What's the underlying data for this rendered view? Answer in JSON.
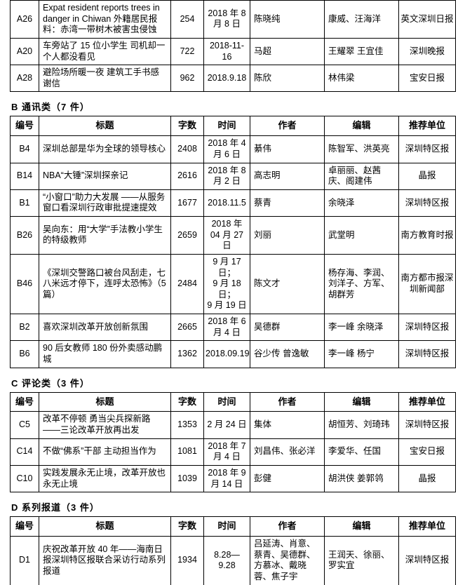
{
  "columns": [
    "编号",
    "标题",
    "字数",
    "时间",
    "作者",
    "编辑",
    "推荐单位"
  ],
  "sections": [
    {
      "id": "A",
      "title": "",
      "show_header": false,
      "rows": [
        {
          "id": "A26",
          "title": "Expat resident reports trees in danger in Chiwan 外籍居民报料：赤湾一带树木被害虫侵蚀",
          "words": "254",
          "date": "2018 年 8 月 8 日",
          "author": "陈晓纯",
          "editor": "康威、汪海洋",
          "unit": "英文深圳日报"
        },
        {
          "id": "A20",
          "title": "车旁站了 15 位小学生 司机却一个人都没看见",
          "words": "722",
          "date": "2018-11-16",
          "author": "马超",
          "editor": "王耀翠 王宜佳",
          "unit": "深圳晚报"
        },
        {
          "id": "A28",
          "title": "避险场所暖一夜 建筑工手书感谢信",
          "words": "962",
          "date": "2018.9.18",
          "author": "陈欣",
          "editor": "林伟梁",
          "unit": "宝安日报"
        }
      ]
    },
    {
      "id": "B",
      "title": "B 通讯类（7 件）",
      "show_header": true,
      "rows": [
        {
          "id": "B4",
          "title": "深圳总部是华为全球的领导核心",
          "words": "2408",
          "date": "2018 年 4 月 6 日",
          "author": "綦伟",
          "editor": "陈智军、洪英亮",
          "unit": "深圳特区报"
        },
        {
          "id": "B14",
          "title": "NBA“大锤”深圳探亲记",
          "words": "2616",
          "date": "2018 年 8 月 2 日",
          "author": "高志明",
          "editor": "卓丽丽、赵茜庆、阁建伟",
          "unit": "晶报"
        },
        {
          "id": "B1",
          "title": "“小窗口”助力大发展 ——从服务窗口看深圳行政审批提速提效",
          "words": "1677",
          "date": "2018.11.5",
          "author": "蔡青",
          "editor": "余晓泽",
          "unit": "深圳特区报"
        },
        {
          "id": "B26",
          "title": "吴向东：用“大学”手法教小学生的特级教师",
          "words": "2659",
          "date": "2018 年 04 月 27 日",
          "author": "刘丽",
          "editor": "武堂明",
          "unit": "南方教育时报"
        },
        {
          "id": "B46",
          "title": "《深圳交警路口被台风刮走，七八米远才停下，连呼太恐怖》（5 篇）",
          "words": "2484",
          "date": "9 月 17 日；\n9 月 18 日；\n9 月 19 日",
          "author": "陈文才",
          "editor": "杨存海、李润、刘洋子、方军、胡群芳",
          "unit": "南方都市报深圳新闻部"
        },
        {
          "id": "B2",
          "title": "喜欢深圳改革开放创新氛围",
          "words": "2665",
          "date": "2018 年 6 月 4 日",
          "author": "吴德群",
          "editor": "李一峰 余晓泽",
          "unit": "深圳特区报"
        },
        {
          "id": "B6",
          "title": "90 后女教师 180 份外卖感动鹏城",
          "words": "1362",
          "date": "2018.09.19",
          "author": "谷少传 曾逸敏",
          "editor": "李一峰 杨宁",
          "unit": "深圳特区报"
        }
      ]
    },
    {
      "id": "C",
      "title": "C 评论类（3 件）",
      "show_header": true,
      "rows": [
        {
          "id": "C5",
          "title": "改革不停顿 勇当尖兵探新路——三论改革开放再出发",
          "words": "1353",
          "date": "2 月 24 日",
          "author": "集体",
          "editor": "胡恒芳、刘琦玮",
          "unit": "深圳特区报"
        },
        {
          "id": "C14",
          "title": "不做“佛系”干部 主动担当作为",
          "words": "1081",
          "date": "2018 年 7 月 4 日",
          "author": "刘昌伟、张必洋",
          "editor": "李爱华、任国",
          "unit": "宝安日报"
        },
        {
          "id": "C10",
          "title": "实践发展永无止境，改革开放也永无止境",
          "words": "1039",
          "date": "2018 年 9 月 14 日",
          "author": "彭健",
          "editor": "胡洪侠 姜郭鸰",
          "unit": "晶报"
        }
      ]
    },
    {
      "id": "D",
      "title": "D 系列报道（3 件）",
      "show_header": true,
      "rows": [
        {
          "id": "D1",
          "title": "庆祝改革开放 40 年——海南日报深圳特区报联合采访行动系列报道",
          "words": "1934",
          "date": "8.28—9.28",
          "author": "吕延涛、肖意、蔡青、吴德群、方慕冰、戴晓蓉、焦子宇",
          "editor": "王润天、徐丽、罗实宜",
          "unit": "深圳特区报"
        }
      ]
    }
  ]
}
